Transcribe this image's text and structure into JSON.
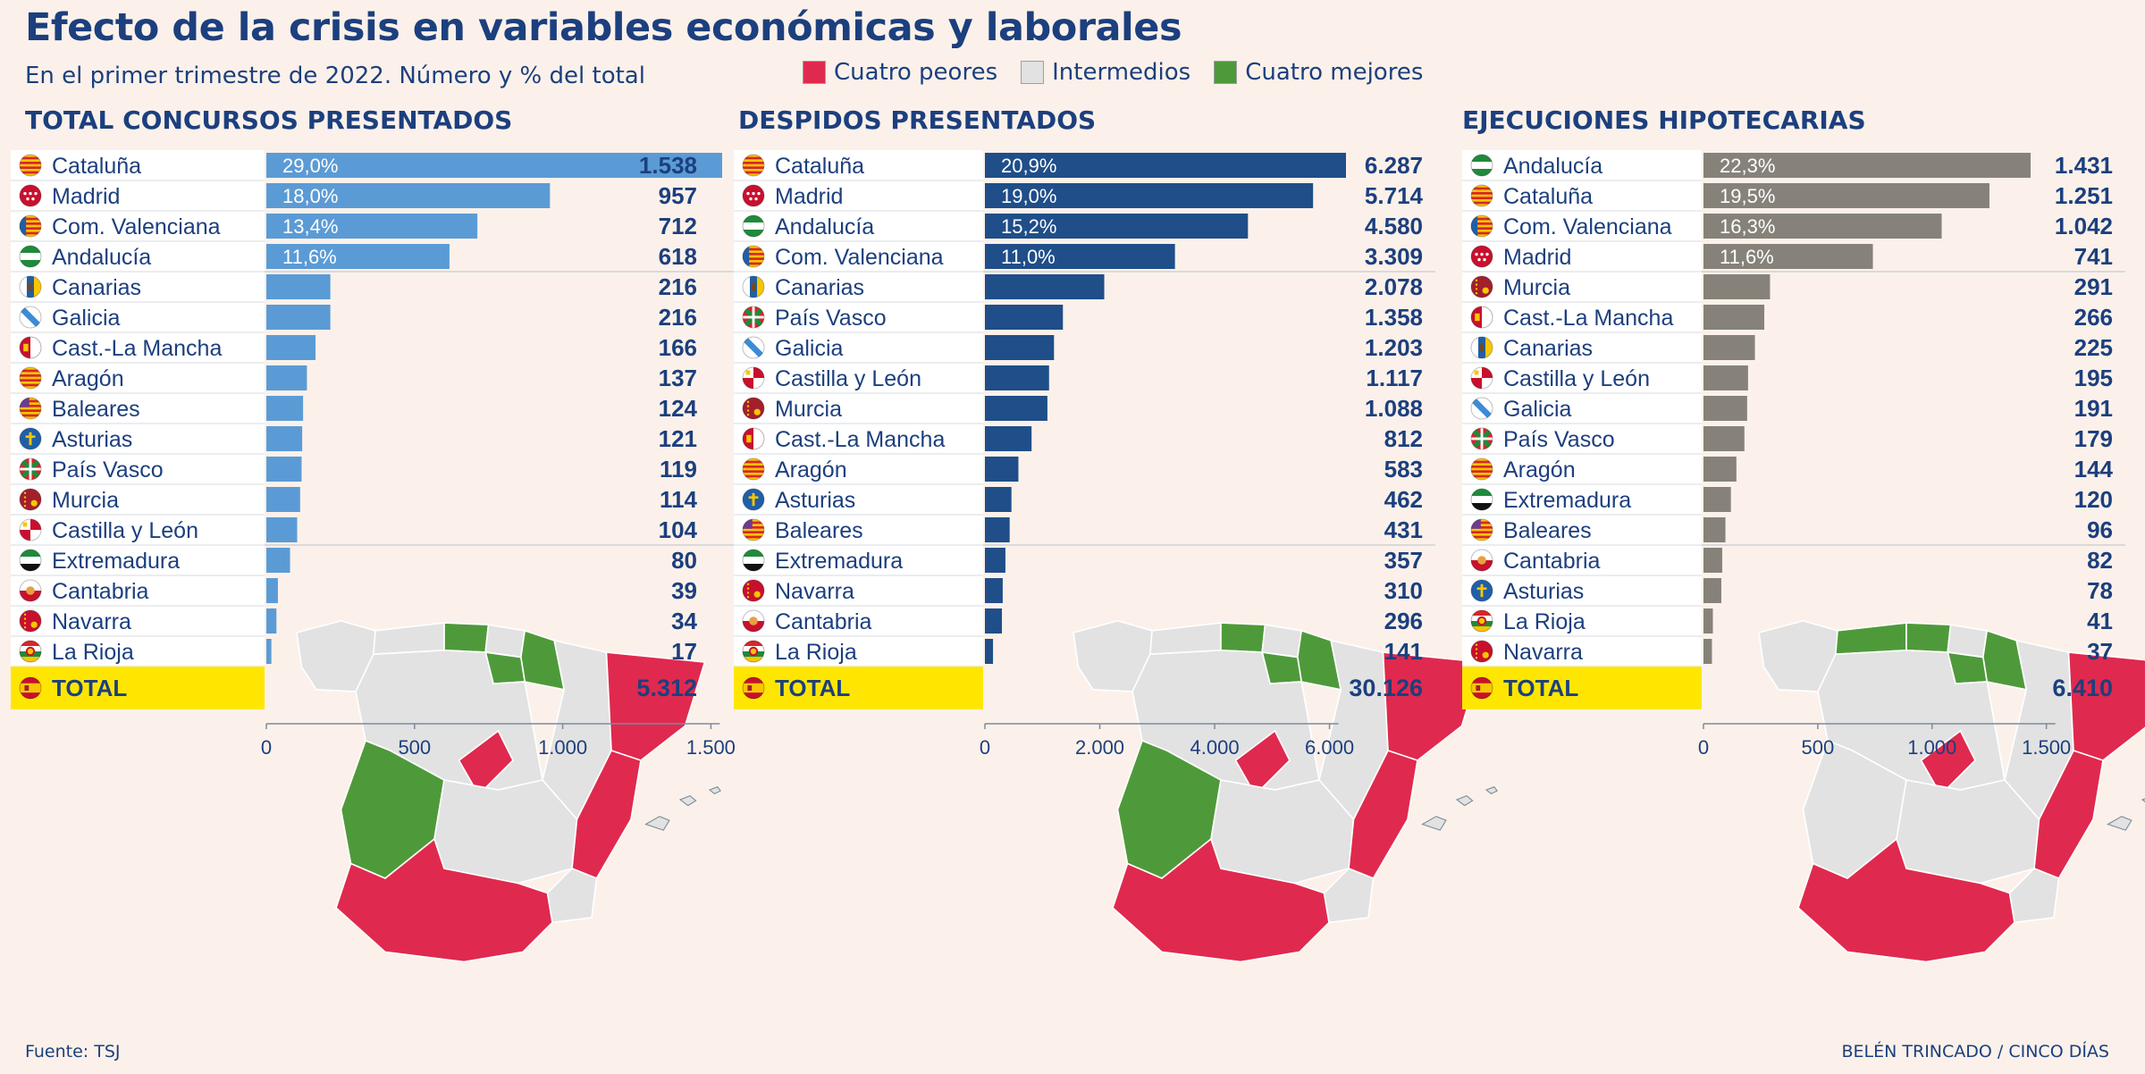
{
  "title": "Efecto de la crisis en variables económicas y laborales",
  "subtitle": "En el primer trimestre de 2022. Número y % del total",
  "legend": [
    {
      "label": "Cuatro peores",
      "color": "#e0294e"
    },
    {
      "label": "Intermedios",
      "color": "#e2e2e2"
    },
    {
      "label": "Cuatro mejores",
      "color": "#4e9a3a"
    }
  ],
  "source": "Fuente: TSJ",
  "credit": "BELÉN TRINCADO / CINCO DÍAS",
  "chart_data": [
    {
      "type": "bar",
      "title": "TOTAL CONCURSOS PRESENTADOS",
      "color": "#5b9bd5",
      "categories": [
        "Cataluña",
        "Madrid",
        "Com. Valenciana",
        "Andalucía",
        "Canarias",
        "Galicia",
        "Cast.-La Mancha",
        "Aragón",
        "Baleares",
        "Asturias",
        "País Vasco",
        "Murcia",
        "Castilla y León",
        "Extremadura",
        "Cantabria",
        "Navarra",
        "La Rioja"
      ],
      "values": [
        1538,
        957,
        712,
        618,
        216,
        216,
        166,
        137,
        124,
        121,
        119,
        114,
        104,
        80,
        39,
        34,
        17
      ],
      "value_labels": [
        "1.538",
        "957",
        "712",
        "618",
        "216",
        "216",
        "166",
        "137",
        "124",
        "121",
        "119",
        "114",
        "104",
        "80",
        "39",
        "34",
        "17"
      ],
      "percent_labels": [
        "29,0%",
        "18,0%",
        "13,4%",
        "11,6%"
      ],
      "total_label": "TOTAL",
      "total_value": "5.312",
      "xlim": [
        0,
        1538
      ],
      "xticks": [
        0,
        500,
        1000,
        1500
      ],
      "xtick_labels": [
        "0",
        "500",
        "1.000",
        "1.500"
      ],
      "groups": {
        "worst": [
          "Cataluña",
          "Madrid",
          "Com. Valenciana",
          "Andalucía"
        ],
        "best": [
          "La Rioja",
          "Navarra",
          "Cantabria",
          "Extremadura"
        ]
      }
    },
    {
      "type": "bar",
      "title": "DESPIDOS PRESENTADOS",
      "color": "#1f4e89",
      "categories": [
        "Cataluña",
        "Madrid",
        "Andalucía",
        "Com. Valenciana",
        "Canarias",
        "País Vasco",
        "Galicia",
        "Castilla y León",
        "Murcia",
        "Cast.-La Mancha",
        "Aragón",
        "Asturias",
        "Baleares",
        "Extremadura",
        "Navarra",
        "Cantabria",
        "La Rioja"
      ],
      "values": [
        6287,
        5714,
        4580,
        3309,
        2078,
        1358,
        1203,
        1117,
        1088,
        812,
        583,
        462,
        431,
        357,
        310,
        296,
        141
      ],
      "value_labels": [
        "6.287",
        "5.714",
        "4.580",
        "3.309",
        "2.078",
        "1.358",
        "1.203",
        "1.117",
        "1.088",
        "812",
        "583",
        "462",
        "431",
        "357",
        "310",
        "296",
        "141"
      ],
      "percent_labels": [
        "20,9%",
        "19,0%",
        "15,2%",
        "11,0%"
      ],
      "total_label": "TOTAL",
      "total_value": "30.126",
      "xlim": [
        0,
        6287
      ],
      "xticks": [
        0,
        2000,
        4000,
        6000
      ],
      "xtick_labels": [
        "0",
        "2.000",
        "4.000",
        "6.000"
      ],
      "groups": {
        "worst": [
          "Cataluña",
          "Madrid",
          "Andalucía",
          "Com. Valenciana"
        ],
        "best": [
          "La Rioja",
          "Cantabria",
          "Navarra",
          "Extremadura"
        ]
      }
    },
    {
      "type": "bar",
      "title": "EJECUCIONES HIPOTECARIAS",
      "color": "#86827a",
      "categories": [
        "Andalucía",
        "Cataluña",
        "Com. Valenciana",
        "Madrid",
        "Murcia",
        "Cast.-La Mancha",
        "Canarias",
        "Castilla y León",
        "Galicia",
        "País Vasco",
        "Aragón",
        "Extremadura",
        "Baleares",
        "Cantabria",
        "Asturias",
        "La Rioja",
        "Navarra"
      ],
      "values": [
        1431,
        1251,
        1042,
        741,
        291,
        266,
        225,
        195,
        191,
        179,
        144,
        120,
        96,
        82,
        78,
        41,
        37
      ],
      "value_labels": [
        "1.431",
        "1.251",
        "1.042",
        "741",
        "291",
        "266",
        "225",
        "195",
        "191",
        "179",
        "144",
        "120",
        "96",
        "82",
        "78",
        "41",
        "37"
      ],
      "percent_labels": [
        "22,3%",
        "19,5%",
        "16,3%",
        "11,6%"
      ],
      "total_label": "TOTAL",
      "total_value": "6.410",
      "xlim": [
        0,
        1431
      ],
      "xticks": [
        0,
        500,
        1000,
        1500
      ],
      "xtick_labels": [
        "0",
        "500",
        "1.000",
        "1.500"
      ],
      "groups": {
        "worst": [
          "Andalucía",
          "Cataluña",
          "Com. Valenciana",
          "Madrid"
        ],
        "best": [
          "Navarra",
          "La Rioja",
          "Asturias",
          "Cantabria"
        ]
      }
    }
  ]
}
